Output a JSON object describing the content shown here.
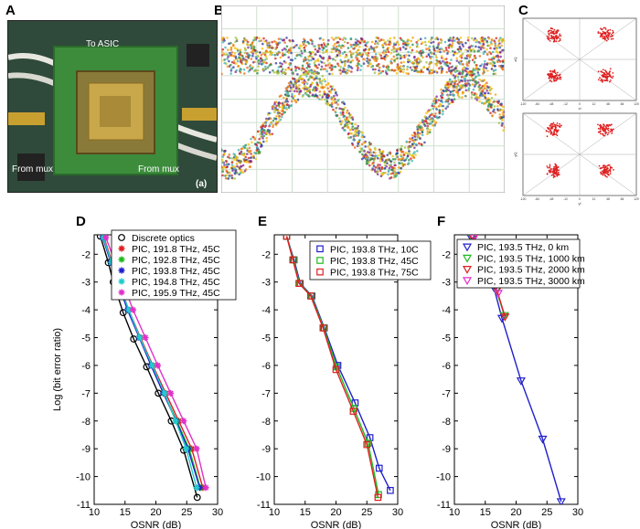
{
  "panel_labels": {
    "a": "A",
    "b": "B",
    "c": "C",
    "d": "D",
    "e": "E",
    "f": "F"
  },
  "photo": {
    "top_label": "To ASIC",
    "left_label": "From mux",
    "right_label": "From mux",
    "sub_label": "(a)"
  },
  "constellation": {
    "ticks": [
      "-120",
      "-84",
      "-48",
      "-12",
      "0",
      "12",
      "48",
      "84",
      "120"
    ],
    "xlabel_top": "xI",
    "ylabel_top": "xQ",
    "xlabel_bottom": "yI",
    "ylabel_bottom": "yQ"
  },
  "chart_data": [
    {
      "type": "scatter",
      "panel": "D",
      "xlabel": "OSNR (dB)",
      "ylabel": "Log (bit error ratio)",
      "xlim": [
        10,
        30
      ],
      "ylim": [
        -11,
        -1.3
      ],
      "xticks": [
        "10",
        "15",
        "20",
        "25",
        "30"
      ],
      "yticks": [
        "-2",
        "-3",
        "-4",
        "-5",
        "-6",
        "-7",
        "-8",
        "-9",
        "-10",
        "-11"
      ],
      "series": [
        {
          "name": "Discrete optics",
          "marker": "circle",
          "color": "#000000",
          "x": [
            11,
            12.3,
            13.1,
            14.7,
            16.4,
            18.5,
            20.4,
            22.5,
            24.5,
            26.7
          ],
          "y": [
            -1.35,
            -2.3,
            -3,
            -4.1,
            -5.05,
            -6.05,
            -7,
            -8,
            -9.05,
            -10.75
          ]
        },
        {
          "name": "PIC, 191.8 THz, 45C",
          "marker": "star",
          "color": "#dd1f1f",
          "x": [
            11.6,
            12.9,
            14,
            15.6,
            17.5,
            19.5,
            21.6,
            23.7,
            25.8,
            27.6
          ],
          "y": [
            -1.4,
            -2.3,
            -3,
            -4,
            -5,
            -6,
            -7,
            -8,
            -9,
            -10.4
          ]
        },
        {
          "name": "PIC, 192.8 THz, 45C",
          "marker": "star",
          "color": "#1fbb1f",
          "x": [
            11.5,
            12.8,
            13.9,
            15.5,
            17.4,
            19.3,
            21.3,
            23.4,
            25.4,
            27.2
          ],
          "y": [
            -1.4,
            -2.3,
            -3,
            -4,
            -5,
            -6,
            -7,
            -8,
            -9,
            -10.4
          ]
        },
        {
          "name": "PIC, 193.8 THz, 45C",
          "marker": "star",
          "color": "#1f1fcc",
          "x": [
            11.4,
            12.7,
            13.8,
            15.4,
            17.3,
            19.2,
            21.2,
            23.3,
            25.2,
            27.1
          ],
          "y": [
            -1.4,
            -2.3,
            -3,
            -4,
            -5,
            -6,
            -7,
            -8,
            -9,
            -10.4
          ]
        },
        {
          "name": "PIC, 194.8 THz, 45C",
          "marker": "star",
          "color": "#22cccc",
          "x": [
            11.5,
            12.8,
            13.9,
            15.6,
            17.4,
            19.4,
            21.4,
            23.2,
            24.9,
            26.6
          ],
          "y": [
            -1.4,
            -2.3,
            -3,
            -4,
            -5,
            -6,
            -7,
            -8,
            -9,
            -10.4
          ]
        },
        {
          "name": "PIC, 195.9 THz, 45C",
          "marker": "star",
          "color": "#e030c8",
          "x": [
            11.9,
            13.4,
            14.6,
            16.3,
            18.3,
            20.3,
            22.4,
            24.5,
            26.6,
            28.1
          ],
          "y": [
            -1.4,
            -2.3,
            -3,
            -4,
            -5,
            -6,
            -7,
            -8,
            -9,
            -10.4
          ]
        }
      ]
    },
    {
      "type": "scatter",
      "panel": "E",
      "xlabel": "OSNR (dB)",
      "ylabel": "",
      "xlim": [
        10,
        30
      ],
      "ylim": [
        -11,
        -1.3
      ],
      "xticks": [
        "10",
        "15",
        "20",
        "25",
        "30"
      ],
      "yticks": [
        "-2",
        "-3",
        "-4",
        "-5",
        "-6",
        "-7",
        "-8",
        "-9",
        "-10",
        "-11"
      ],
      "series": [
        {
          "name": "PIC, 193.8 THz, 10C",
          "marker": "square",
          "color": "#1f1fcc",
          "x": [
            12,
            13.2,
            14.2,
            16.1,
            18.1,
            20.3,
            23.1,
            25.5,
            27,
            28.8
          ],
          "y": [
            -1.35,
            -2.2,
            -3.05,
            -3.5,
            -4.65,
            -6,
            -7.35,
            -8.6,
            -9.7,
            -10.5
          ]
        },
        {
          "name": "PIC, 193.8 THz, 45C",
          "marker": "square",
          "color": "#1fbb1f",
          "x": [
            12,
            13.1,
            14.1,
            16,
            18,
            20.1,
            22.9,
            25.2,
            26.9
          ],
          "y": [
            -1.35,
            -2.2,
            -3.05,
            -3.5,
            -4.65,
            -6.05,
            -7.55,
            -8.8,
            -10.65
          ]
        },
        {
          "name": "PIC, 193.8 THz, 75C",
          "marker": "square",
          "color": "#dd1f1f",
          "x": [
            12,
            13,
            14,
            15.9,
            17.9,
            20,
            22.8,
            25,
            26.8
          ],
          "y": [
            -1.35,
            -2.2,
            -3.05,
            -3.5,
            -4.65,
            -6.15,
            -7.65,
            -8.85,
            -10.75
          ]
        }
      ]
    },
    {
      "type": "scatter",
      "panel": "F",
      "xlabel": "OSNR (dB)",
      "ylabel": "",
      "xlim": [
        10,
        30
      ],
      "ylim": [
        -11,
        -1.3
      ],
      "xticks": [
        "10",
        "15",
        "20",
        "25",
        "30"
      ],
      "yticks": [
        "-2",
        "-3",
        "-4",
        "-5",
        "-6",
        "-7",
        "-8",
        "-9",
        "-10",
        "-11"
      ],
      "series": [
        {
          "name": "PIC, 193.5 THz, 0 km",
          "marker": "triangle-down",
          "color": "#1f1fcc",
          "x": [
            12.7,
            14.8,
            15.6,
            16.4,
            17.7,
            20.8,
            24.3,
            27.3
          ],
          "y": [
            -1.4,
            -2.2,
            -2.7,
            -3.2,
            -4.3,
            -6.55,
            -8.65,
            -10.9
          ]
        },
        {
          "name": "PIC, 193.5 THz, 1000 km",
          "marker": "triangle-down",
          "color": "#1fbb1f",
          "x": [
            12.9,
            15,
            15.8,
            16.8,
            18.1
          ],
          "y": [
            -1.4,
            -2.2,
            -2.7,
            -3.3,
            -4.2
          ]
        },
        {
          "name": "PIC, 193.5 THz, 2000 km",
          "marker": "triangle-down",
          "color": "#dd1f1f",
          "x": [
            13,
            15.1,
            15.9,
            16.9,
            18.2
          ],
          "y": [
            -1.4,
            -2.2,
            -2.7,
            -3.3,
            -4.25
          ]
        },
        {
          "name": "PIC, 193.5 THz, 3000 km",
          "marker": "triangle-down",
          "color": "#e030c8",
          "x": [
            13.2,
            15.2,
            16,
            17.1
          ],
          "y": [
            -1.4,
            -2.2,
            -2.7,
            -3.4
          ]
        }
      ]
    }
  ]
}
